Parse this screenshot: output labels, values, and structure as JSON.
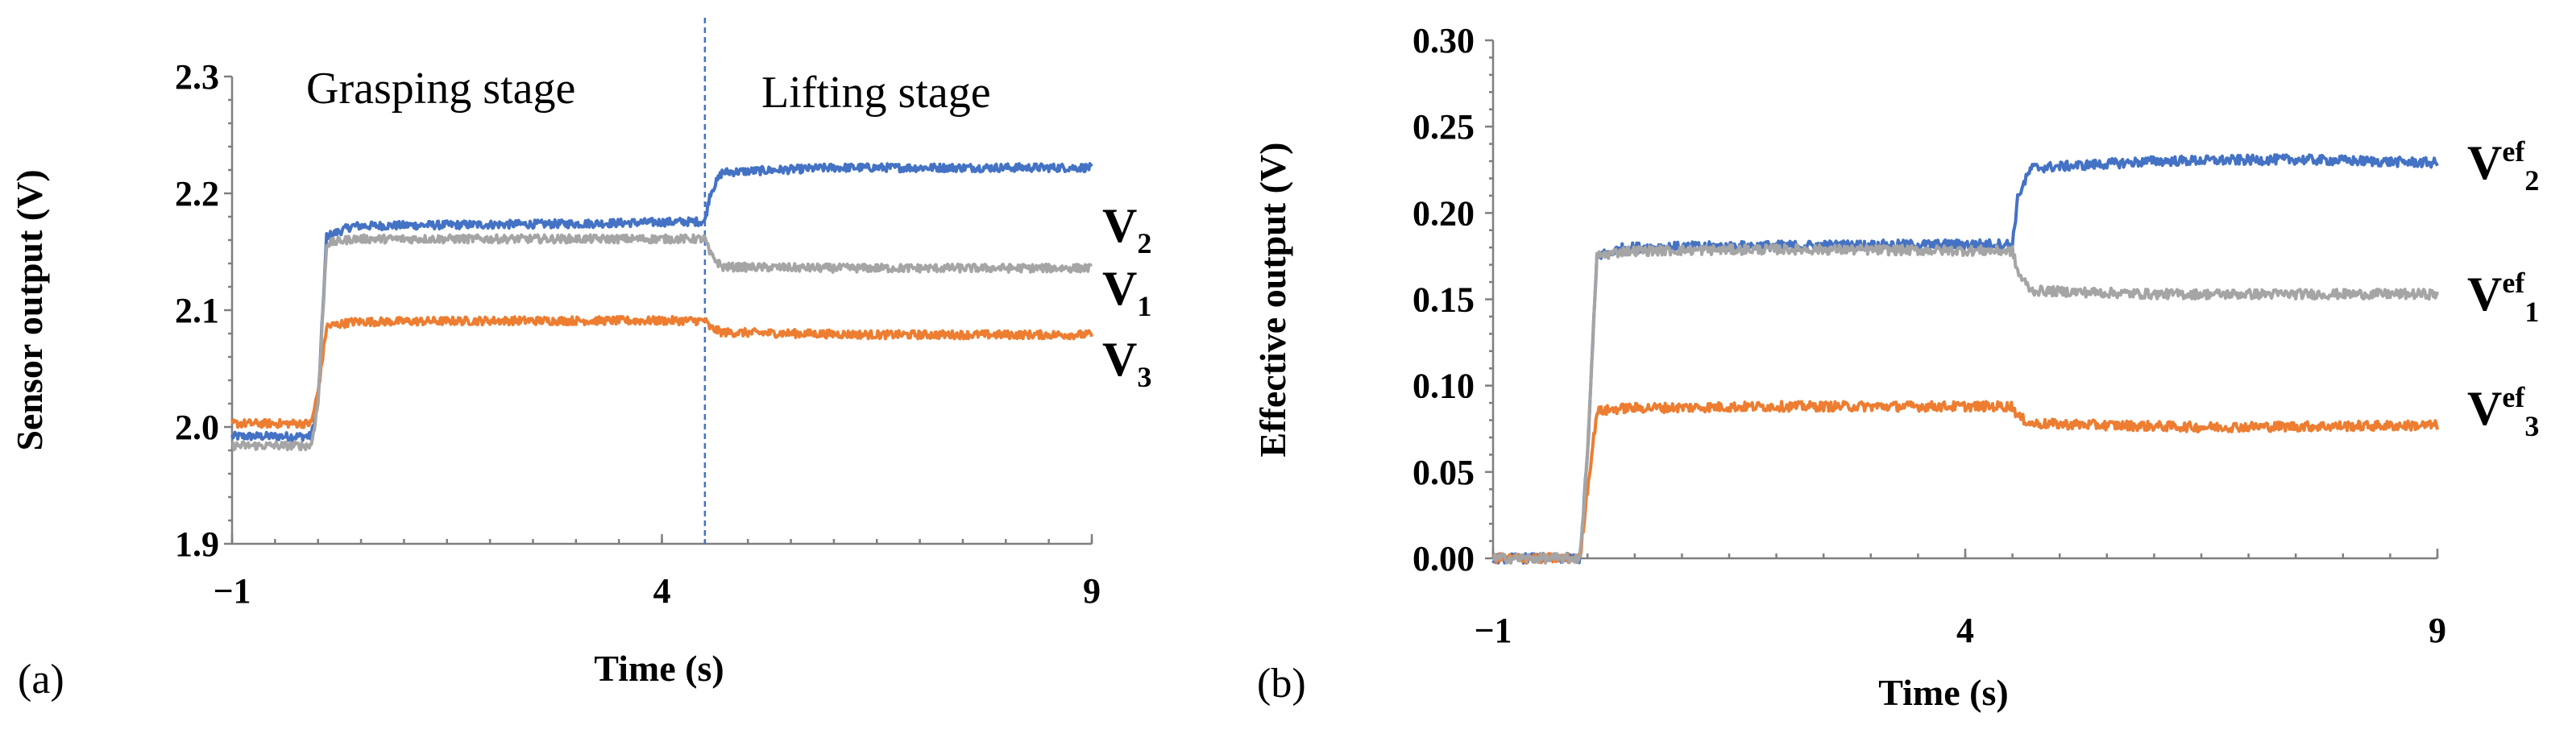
{
  "colors": {
    "V1": "#a5a5a5",
    "V2": "#4472c4",
    "V3": "#ed7d31",
    "divider": "#4472c4"
  },
  "chart_data": [
    {
      "panel": "(a)",
      "type": "line",
      "title": "",
      "xlabel": "Time (s)",
      "ylabel": "Sensor output (V)",
      "xlim": [
        -1,
        9
      ],
      "ylim": [
        1.9,
        2.3
      ],
      "xticks": [
        -1,
        4,
        9
      ],
      "xtick_labels": [
        "−1",
        "4",
        "9"
      ],
      "yticks": [
        1.9,
        2.0,
        2.1,
        2.2,
        2.3
      ],
      "ytick_labels": [
        "1.9",
        "2.0",
        "2.1",
        "2.2",
        "2.3"
      ],
      "divider_x": 4.5,
      "annotations": [
        "Grasping stage",
        "Lifting stage"
      ],
      "series": [
        {
          "name": "V2",
          "label_main": "V",
          "label_sub": "2",
          "color": "#4472c4",
          "points": [
            [
              -1,
              1.992
            ],
            [
              -0.08,
              1.992
            ],
            [
              0.0,
              2.02
            ],
            [
              0.1,
              2.163
            ],
            [
              0.4,
              2.172
            ],
            [
              1.5,
              2.173
            ],
            [
              3.0,
              2.174
            ],
            [
              4.5,
              2.176
            ],
            [
              4.56,
              2.2
            ],
            [
              4.7,
              2.218
            ],
            [
              6.0,
              2.222
            ],
            [
              7.5,
              2.222
            ],
            [
              9,
              2.222
            ]
          ]
        },
        {
          "name": "V1",
          "label_main": "V",
          "label_sub": "1",
          "color": "#a5a5a5",
          "points": [
            [
              -1,
              1.984
            ],
            [
              -0.08,
              1.984
            ],
            [
              0.0,
              2.02
            ],
            [
              0.1,
              2.157
            ],
            [
              0.4,
              2.161
            ],
            [
              2.0,
              2.161
            ],
            [
              4.5,
              2.161
            ],
            [
              4.56,
              2.148
            ],
            [
              4.7,
              2.137
            ],
            [
              6.0,
              2.136
            ],
            [
              7.5,
              2.136
            ],
            [
              9,
              2.136
            ]
          ]
        },
        {
          "name": "V3",
          "label_main": "V",
          "label_sub": "3",
          "color": "#ed7d31",
          "points": [
            [
              -1,
              2.003
            ],
            [
              -0.08,
              2.003
            ],
            [
              0.0,
              2.03
            ],
            [
              0.1,
              2.086
            ],
            [
              0.4,
              2.09
            ],
            [
              2.0,
              2.091
            ],
            [
              4.5,
              2.091
            ],
            [
              4.56,
              2.085
            ],
            [
              4.7,
              2.081
            ],
            [
              6.5,
              2.079
            ],
            [
              9,
              2.079
            ]
          ]
        }
      ]
    },
    {
      "panel": "(b)",
      "type": "line",
      "title": "",
      "xlabel": "Time (s)",
      "ylabel": "Effective output (V)",
      "xlim": [
        -1,
        9
      ],
      "ylim": [
        0,
        0.3
      ],
      "xticks": [
        -1,
        4,
        9
      ],
      "xtick_labels": [
        "−1",
        "4",
        "9"
      ],
      "yticks": [
        0,
        0.05,
        0.1,
        0.15,
        0.2,
        0.25,
        0.3
      ],
      "ytick_labels": [
        "0.00",
        "0.05",
        "0.10",
        "0.15",
        "0.20",
        "0.25",
        "0.30"
      ],
      "series": [
        {
          "name": "Vef2",
          "label_main": "V",
          "label_sup": "ef",
          "label_sub": "2",
          "color": "#4472c4",
          "points": [
            [
              -1,
              0.0
            ],
            [
              -0.08,
              0.0
            ],
            [
              0.0,
              0.06
            ],
            [
              0.1,
              0.175
            ],
            [
              0.4,
              0.18
            ],
            [
              2.0,
              0.181
            ],
            [
              4.5,
              0.182
            ],
            [
              4.56,
              0.21
            ],
            [
              4.7,
              0.226
            ],
            [
              6.0,
              0.23
            ],
            [
              7.5,
              0.231
            ],
            [
              9,
              0.229
            ]
          ]
        },
        {
          "name": "Vef1",
          "label_main": "V",
          "label_sup": "ef",
          "label_sub": "1",
          "color": "#a5a5a5",
          "points": [
            [
              -1,
              0.0
            ],
            [
              -0.08,
              0.0
            ],
            [
              0.0,
              0.06
            ],
            [
              0.1,
              0.175
            ],
            [
              0.4,
              0.178
            ],
            [
              2.0,
              0.179
            ],
            [
              4.5,
              0.178
            ],
            [
              4.56,
              0.165
            ],
            [
              4.7,
              0.155
            ],
            [
              6.0,
              0.153
            ],
            [
              7.5,
              0.153
            ],
            [
              9,
              0.153
            ]
          ]
        },
        {
          "name": "Vef3",
          "label_main": "V",
          "label_sup": "ef",
          "label_sub": "3",
          "color": "#ed7d31",
          "points": [
            [
              -1,
              0.0
            ],
            [
              -0.08,
              0.0
            ],
            [
              0.0,
              0.04
            ],
            [
              0.1,
              0.085
            ],
            [
              0.4,
              0.087
            ],
            [
              2.0,
              0.088
            ],
            [
              4.5,
              0.088
            ],
            [
              4.56,
              0.082
            ],
            [
              4.7,
              0.078
            ],
            [
              6.5,
              0.076
            ],
            [
              9,
              0.077
            ]
          ]
        }
      ]
    }
  ]
}
